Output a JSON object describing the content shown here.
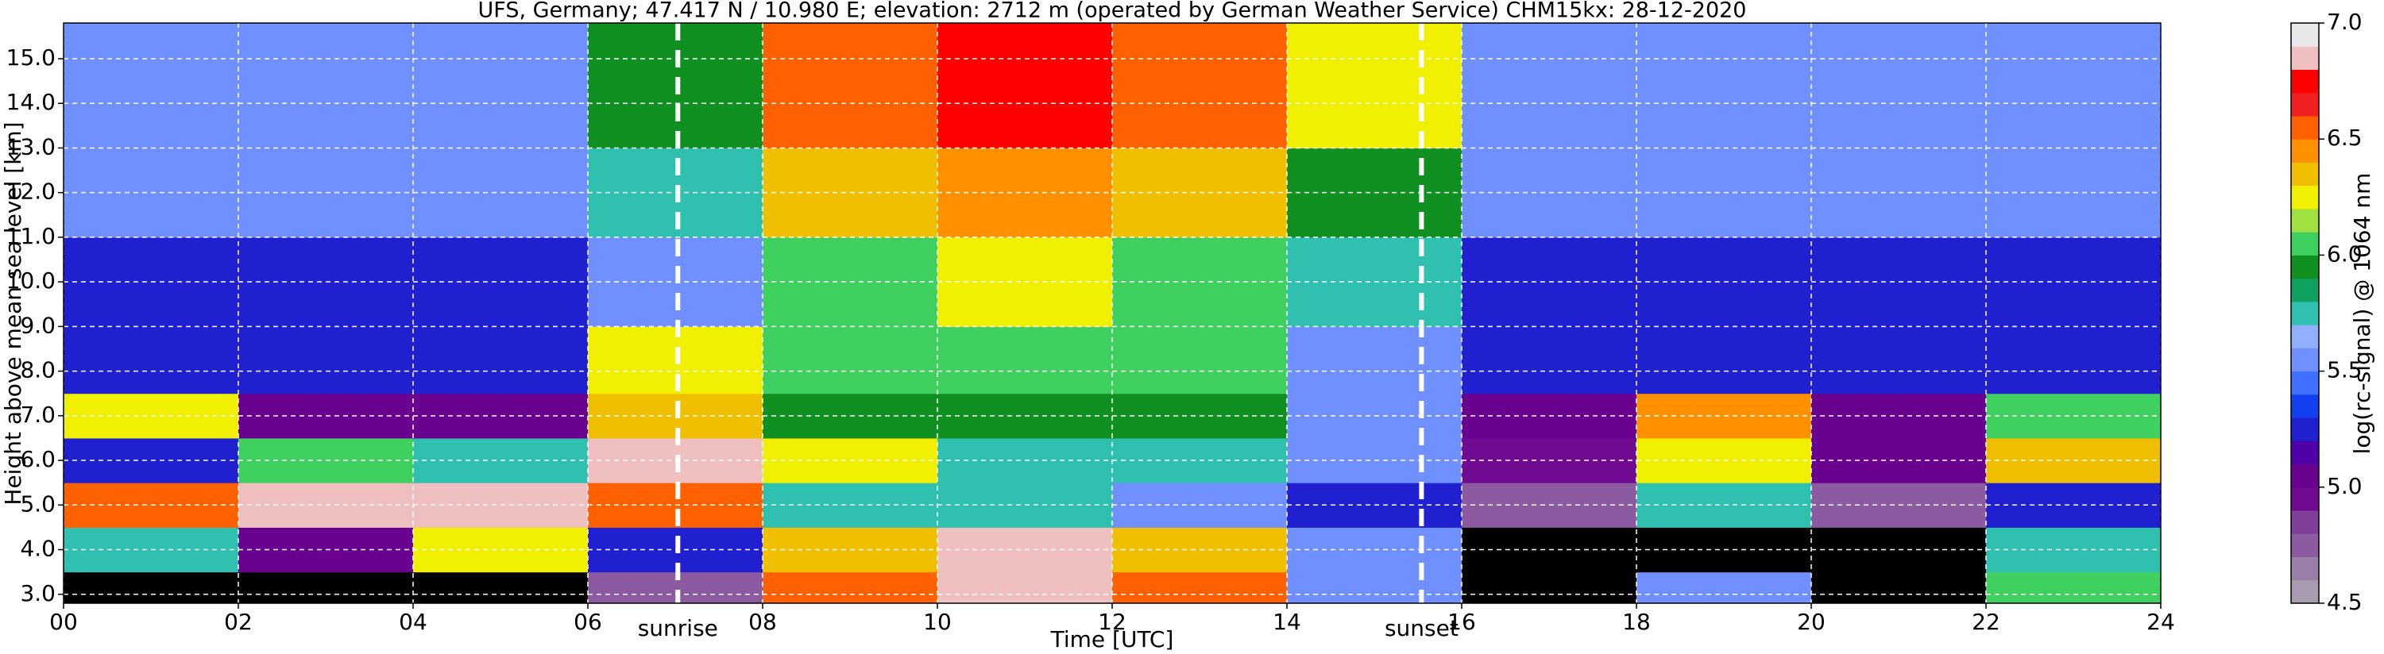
{
  "chart_data": {
    "type": "heatmap",
    "title": "UFS, Germany; 47.417 N / 10.980 E; elevation: 2712 m  (operated by German Weather Service)    CHM15kx: 28-12-2020",
    "x_label": "Time [UTC]",
    "y_label": "Height above mean sea level [km]",
    "xlim": [
      0,
      24
    ],
    "xticks": [
      {
        "value": 0,
        "label": "00"
      },
      {
        "value": 2,
        "label": "02"
      },
      {
        "value": 4,
        "label": "04"
      },
      {
        "value": 6,
        "label": "06"
      },
      {
        "value": 8,
        "label": "08"
      },
      10,
      12,
      14,
      16,
      18,
      20,
      22,
      24
    ],
    "ylim": [
      2.8,
      15.8
    ],
    "yticks": [
      {
        "value": 3,
        "label": "3.0"
      },
      {
        "value": 4,
        "label": "4.0"
      },
      {
        "value": 5,
        "label": "5.0"
      },
      {
        "value": 6,
        "label": "6.0"
      },
      {
        "value": 7,
        "label": "7.0"
      },
      {
        "value": 8,
        "label": "8.0"
      },
      {
        "value": 9,
        "label": "9.0"
      },
      {
        "value": 10,
        "label": "10.0"
      },
      {
        "value": 11,
        "label": "11.0"
      },
      {
        "value": 12,
        "label": "12.0"
      },
      {
        "value": 13,
        "label": "13.0"
      },
      {
        "value": 14,
        "label": "14.0"
      },
      {
        "value": 15,
        "label": "15.0"
      }
    ],
    "grid": true,
    "x_edges": [
      0,
      2,
      4,
      6,
      8,
      10,
      12,
      14,
      16,
      18,
      20,
      22,
      24
    ],
    "y_edges": [
      2.8,
      3.5,
      4.5,
      5.5,
      6.5,
      7.5,
      9,
      11,
      13,
      15.8
    ],
    "z": [
      [
        4.3,
        4.3,
        4.3,
        4.8,
        6.5,
        6.8,
        6.5,
        5.5,
        4.3,
        5.5,
        4.3,
        6.0
      ],
      [
        5.8,
        5.0,
        6.2,
        5.2,
        6.3,
        6.8,
        6.3,
        5.5,
        4.3,
        4.3,
        4.3,
        5.8
      ],
      [
        6.6,
        6.8,
        6.8,
        6.6,
        5.8,
        5.7,
        5.6,
        5.3,
        4.7,
        5.8,
        4.8,
        5.3
      ],
      [
        5.2,
        6.0,
        5.8,
        6.8,
        6.2,
        5.8,
        5.8,
        5.5,
        4.9,
        6.2,
        5.0,
        6.3
      ],
      [
        6.2,
        5.1,
        5.1,
        6.3,
        5.9,
        5.9,
        5.9,
        5.6,
        5.1,
        6.4,
        5.1,
        6.0
      ],
      [
        5.2,
        5.2,
        5.2,
        6.2,
        6.0,
        6.0,
        6.0,
        5.6,
        5.2,
        5.2,
        5.2,
        5.2
      ],
      [
        5.3,
        5.3,
        5.3,
        5.6,
        6.1,
        6.2,
        6.1,
        5.7,
        5.3,
        5.3,
        5.3,
        5.3
      ],
      [
        5.5,
        5.5,
        5.5,
        5.8,
        6.3,
        6.4,
        6.3,
        5.9,
        5.5,
        5.5,
        5.5,
        5.5
      ],
      [
        5.6,
        5.6,
        5.6,
        5.9,
        6.5,
        6.7,
        6.6,
        6.2,
        5.6,
        5.6,
        5.6,
        5.6
      ]
    ],
    "annotations": [
      {
        "text": "sunrise",
        "x": 7.03
      },
      {
        "text": "sunset",
        "x": 15.54
      }
    ],
    "colorbar": {
      "label": "log(rc-signal) @ 1064 nm",
      "clim": [
        4.5,
        7.0
      ],
      "ticks": [
        4.5,
        {
          "value": 5.0,
          "label": "5.0"
        },
        5.5,
        {
          "value": 6.0,
          "label": "6.0"
        },
        6.5,
        {
          "value": 7.0,
          "label": "7.0"
        }
      ],
      "under_color": "#000000",
      "colors": [
        "#a89cb0",
        "#9a80a8",
        "#8c5aa0",
        "#80409a",
        "#700a90",
        "#6a0090",
        "#5000a8",
        "#2020d0",
        "#1040f0",
        "#4070ff",
        "#7090ff",
        "#90b0ff",
        "#30c0b0",
        "#10a060",
        "#109020",
        "#40d060",
        "#a0e040",
        "#f0f000",
        "#f0c000",
        "#ff9000",
        "#ff6000",
        "#f02020",
        "#ff0000",
        "#f0c0c0",
        "#e8e8e8"
      ]
    }
  }
}
